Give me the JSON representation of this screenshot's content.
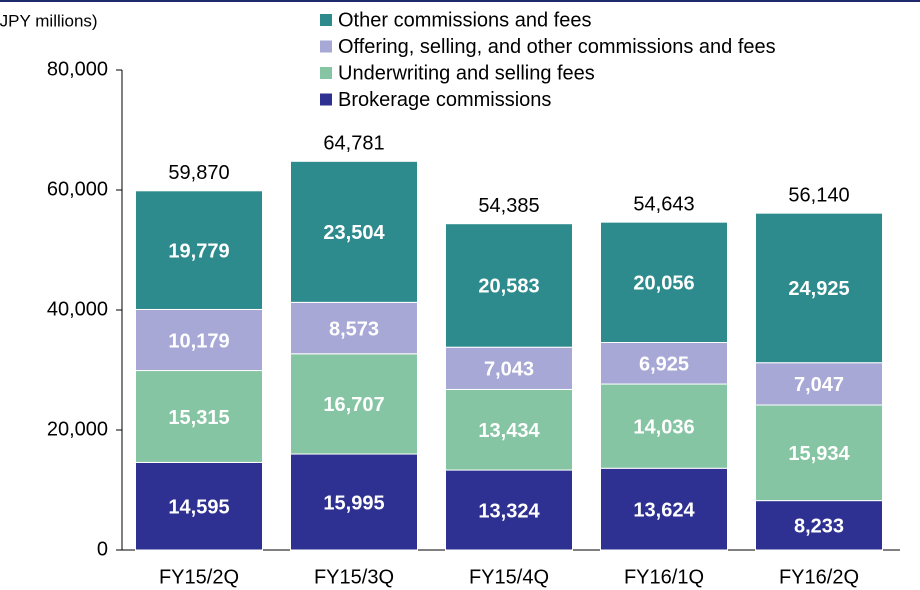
{
  "chart_data": {
    "type": "stacked-bar",
    "y_axis_label": "(JPY millions)",
    "categories": [
      "FY15/2Q",
      "FY15/3Q",
      "FY15/4Q",
      "FY16/1Q",
      "FY16/2Q"
    ],
    "series": [
      {
        "name": "Brokerage commissions",
        "color": "#2e3192",
        "values": [
          14595,
          15995,
          13324,
          13624,
          8233
        ],
        "value_labels": [
          "14,595",
          "15,995",
          "13,324",
          "13,624",
          "8,233"
        ]
      },
      {
        "name": "Underwriting and selling fees",
        "color": "#86c5a3",
        "values": [
          15315,
          16707,
          13434,
          14036,
          15934
        ],
        "value_labels": [
          "15,315",
          "16,707",
          "13,434",
          "14,036",
          "15,934"
        ]
      },
      {
        "name": "Offering, selling, and other commissions and fees",
        "color": "#a7a8d6",
        "values": [
          10179,
          8573,
          7043,
          6925,
          7047
        ],
        "value_labels": [
          "10,179",
          "8,573",
          "7,043",
          "6,925",
          "7,047"
        ]
      },
      {
        "name": "Other commissions and fees",
        "color": "#2e8b8d",
        "values": [
          19779,
          23504,
          20583,
          20056,
          24925
        ],
        "value_labels": [
          "19,779",
          "23,504",
          "20,583",
          "20,056",
          "24,925"
        ]
      }
    ],
    "totals": [
      59870,
      64781,
      54385,
      54643,
      56140
    ],
    "total_labels": [
      "59,870",
      "64,781",
      "54,385",
      "54,643",
      "56,140"
    ],
    "ylim": [
      0,
      80000
    ],
    "yticks": [
      0,
      {
        "value": 20000,
        "label": "20,000"
      },
      {
        "value": 40000,
        "label": "40,000"
      },
      {
        "value": 60000,
        "label": "60,000"
      },
      {
        "value": 80000,
        "label": "80,000"
      }
    ]
  }
}
